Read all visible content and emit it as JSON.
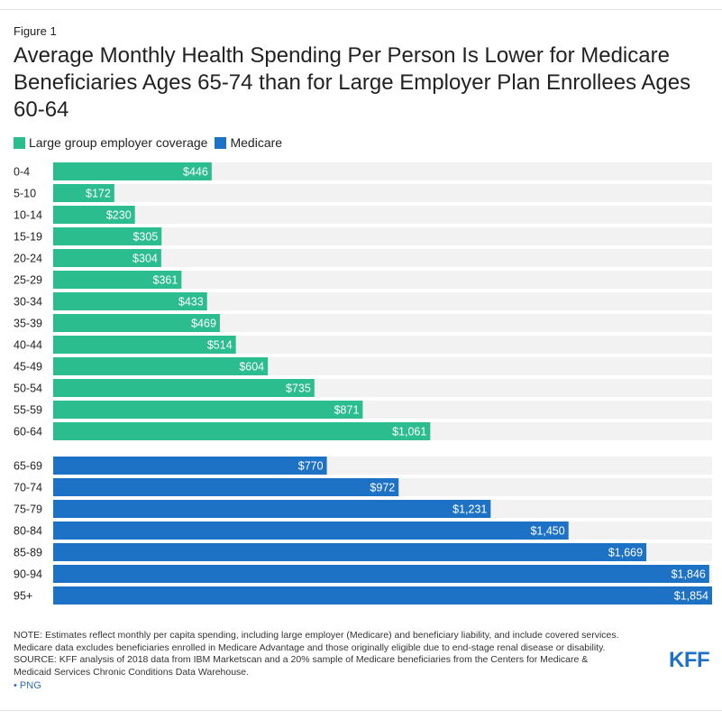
{
  "figure_label": "Figure 1",
  "chart_data": {
    "type": "bar",
    "orientation": "horizontal",
    "title": "Average Monthly Health Spending Per Person Is Lower for Medicare Beneficiaries Ages 65-74 than for Large Employer Plan Enrollees Ages 60-64",
    "xlim": [
      0,
      1854
    ],
    "legend": [
      {
        "name": "Large group employer coverage",
        "color": "#2bbd8e"
      },
      {
        "name": "Medicare",
        "color": "#1d72c6"
      }
    ],
    "series": [
      {
        "name": "Large group employer coverage",
        "color": "#2bbd8e",
        "categories": [
          "0-4",
          "5-10",
          "10-14",
          "15-19",
          "20-24",
          "25-29",
          "30-34",
          "35-39",
          "40-44",
          "45-49",
          "50-54",
          "55-59",
          "60-64"
        ],
        "values": [
          446,
          172,
          230,
          305,
          304,
          361,
          433,
          469,
          514,
          604,
          735,
          871,
          1061
        ],
        "labels": [
          "$446",
          "$172",
          "$230",
          "$305",
          "$304",
          "$361",
          "$433",
          "$469",
          "$514",
          "$604",
          "$735",
          "$871",
          "$1,061"
        ]
      },
      {
        "name": "Medicare",
        "color": "#1d72c6",
        "categories": [
          "65-69",
          "70-74",
          "75-79",
          "80-84",
          "85-89",
          "90-94",
          "95+"
        ],
        "values": [
          770,
          972,
          1231,
          1450,
          1669,
          1846,
          1854
        ],
        "labels": [
          "$770",
          "$972",
          "$1,231",
          "$1,450",
          "$1,669",
          "$1,846",
          "$1,854"
        ]
      }
    ],
    "track_color": "#f2f2f2"
  },
  "notes": {
    "line1": "NOTE: Estimates reflect monthly per capita spending, including large employer (Medicare) and beneficiary liability, and include covered services.",
    "line2": "Medicare data excludes beneficiaries enrolled in Medicare Advantage and those originally eligible due to end-stage renal disease or disability.",
    "line3": "SOURCE: KFF analysis of 2018 data from IBM Marketscan and a 20% sample of Medicare beneficiaries from the Centers for Medicare &",
    "line4": "Medicaid Services Chronic Conditions Data Warehouse."
  },
  "png_link": "• PNG",
  "logo_text": "KFF"
}
